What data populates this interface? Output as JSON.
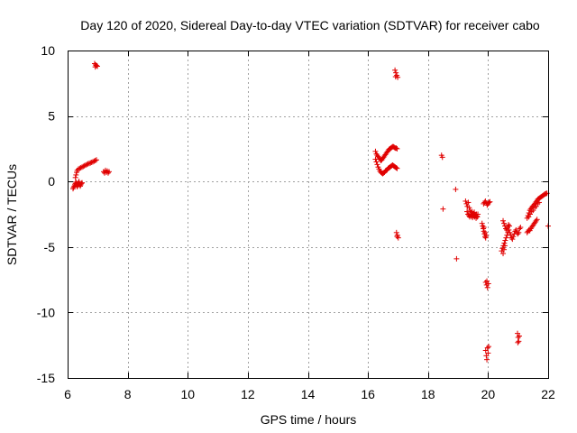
{
  "chart_data": {
    "type": "scatter",
    "title": "Day 120 of 2020, Sidereal Day-to-day VTEC variation (SDTVAR) for receiver cabo",
    "xlabel": "GPS time / hours",
    "ylabel": "SDTVAR / TECUs",
    "xlim": [
      6,
      22
    ],
    "ylim": [
      -15,
      10
    ],
    "x_ticks": [
      6,
      8,
      10,
      12,
      14,
      16,
      18,
      20,
      22
    ],
    "x_tick_labels": [
      "6",
      "8",
      "10",
      "12",
      "14",
      "16",
      "18",
      "20",
      "22"
    ],
    "y_ticks": [
      10,
      5,
      0,
      -5,
      -10,
      -15
    ],
    "y_tick_labels": [
      "10",
      "5",
      "0",
      "-5",
      "-10",
      "-15"
    ],
    "grid": true,
    "marker": "+",
    "color": "#e00000",
    "series": [
      {
        "name": "SDTVAR",
        "points": [
          [
            6.18,
            -0.55
          ],
          [
            6.2,
            -0.45
          ],
          [
            6.22,
            -0.35
          ],
          [
            6.24,
            -0.25
          ],
          [
            6.26,
            -0.15
          ],
          [
            6.28,
            -0.05
          ],
          [
            6.3,
            -0.2
          ],
          [
            6.32,
            -0.4
          ],
          [
            6.34,
            -0.3
          ],
          [
            6.36,
            -0.1
          ],
          [
            6.38,
            0.0
          ],
          [
            6.4,
            -0.2
          ],
          [
            6.42,
            -0.35
          ],
          [
            6.44,
            -0.25
          ],
          [
            6.46,
            -0.15
          ],
          [
            6.48,
            -0.1
          ],
          [
            6.26,
            0.3
          ],
          [
            6.28,
            0.5
          ],
          [
            6.3,
            0.7
          ],
          [
            6.32,
            0.85
          ],
          [
            6.36,
            0.95
          ],
          [
            6.4,
            1.0
          ],
          [
            6.44,
            1.05
          ],
          [
            6.48,
            1.1
          ],
          [
            6.52,
            1.15
          ],
          [
            6.56,
            1.2
          ],
          [
            6.6,
            1.25
          ],
          [
            6.64,
            1.3
          ],
          [
            6.68,
            1.35
          ],
          [
            6.72,
            1.38
          ],
          [
            6.76,
            1.42
          ],
          [
            6.8,
            1.46
          ],
          [
            6.84,
            1.5
          ],
          [
            6.88,
            1.55
          ],
          [
            6.92,
            1.6
          ],
          [
            6.96,
            1.65
          ],
          [
            6.9,
            9.0
          ],
          [
            6.93,
            8.9
          ],
          [
            6.96,
            8.85
          ],
          [
            6.99,
            8.8
          ],
          [
            6.92,
            8.75
          ],
          [
            7.2,
            0.75
          ],
          [
            7.23,
            0.65
          ],
          [
            7.26,
            0.85
          ],
          [
            7.29,
            0.7
          ],
          [
            7.32,
            0.8
          ],
          [
            7.35,
            0.65
          ],
          [
            7.38,
            0.75
          ],
          [
            16.25,
            2.3
          ],
          [
            16.28,
            2.1
          ],
          [
            16.31,
            2.0
          ],
          [
            16.34,
            1.9
          ],
          [
            16.37,
            1.8
          ],
          [
            16.4,
            1.7
          ],
          [
            16.43,
            1.6
          ],
          [
            16.46,
            1.65
          ],
          [
            16.49,
            1.75
          ],
          [
            16.52,
            1.85
          ],
          [
            16.55,
            1.95
          ],
          [
            16.58,
            2.05
          ],
          [
            16.61,
            2.15
          ],
          [
            16.64,
            2.25
          ],
          [
            16.67,
            2.35
          ],
          [
            16.7,
            2.45
          ],
          [
            16.73,
            2.5
          ],
          [
            16.76,
            2.55
          ],
          [
            16.79,
            2.6
          ],
          [
            16.82,
            2.65
          ],
          [
            16.85,
            2.65
          ],
          [
            16.88,
            2.6
          ],
          [
            16.91,
            2.55
          ],
          [
            16.94,
            2.55
          ],
          [
            16.97,
            2.5
          ],
          [
            16.25,
            1.7
          ],
          [
            16.28,
            1.5
          ],
          [
            16.31,
            1.3
          ],
          [
            16.34,
            1.1
          ],
          [
            16.37,
            0.95
          ],
          [
            16.4,
            0.8
          ],
          [
            16.43,
            0.7
          ],
          [
            16.46,
            0.65
          ],
          [
            16.49,
            0.6
          ],
          [
            16.52,
            0.65
          ],
          [
            16.55,
            0.7
          ],
          [
            16.58,
            0.8
          ],
          [
            16.61,
            0.85
          ],
          [
            16.64,
            0.9
          ],
          [
            16.67,
            1.0
          ],
          [
            16.7,
            1.05
          ],
          [
            16.73,
            1.1
          ],
          [
            16.76,
            1.15
          ],
          [
            16.79,
            1.2
          ],
          [
            16.82,
            1.25
          ],
          [
            16.85,
            1.2
          ],
          [
            16.88,
            1.15
          ],
          [
            16.91,
            1.1
          ],
          [
            16.94,
            1.05
          ],
          [
            16.97,
            1.0
          ],
          [
            16.9,
            8.5
          ],
          [
            16.93,
            8.3
          ],
          [
            16.96,
            8.1
          ],
          [
            16.99,
            7.95
          ],
          [
            16.92,
            8.0
          ],
          [
            16.95,
            -3.9
          ],
          [
            16.98,
            -4.1
          ],
          [
            17.01,
            -4.3
          ],
          [
            16.97,
            -4.2
          ],
          [
            18.45,
            2.0
          ],
          [
            18.48,
            1.85
          ],
          [
            18.5,
            -2.1
          ],
          [
            18.92,
            -0.6
          ],
          [
            18.95,
            -5.9
          ],
          [
            19.25,
            -1.5
          ],
          [
            19.28,
            -1.7
          ],
          [
            19.31,
            -1.9
          ],
          [
            19.34,
            -1.6
          ],
          [
            19.37,
            -2.0
          ],
          [
            19.4,
            -2.2
          ],
          [
            19.43,
            -2.4
          ],
          [
            19.46,
            -2.3
          ],
          [
            19.49,
            -2.5
          ],
          [
            19.52,
            -2.6
          ],
          [
            19.55,
            -2.7
          ],
          [
            19.58,
            -2.6
          ],
          [
            19.61,
            -2.5
          ],
          [
            19.64,
            -2.7
          ],
          [
            19.3,
            -2.3
          ],
          [
            19.33,
            -2.5
          ],
          [
            19.36,
            -2.6
          ],
          [
            19.39,
            -2.7
          ],
          [
            19.42,
            -2.55
          ],
          [
            19.45,
            -2.65
          ],
          [
            19.48,
            -2.75
          ],
          [
            19.51,
            -2.45
          ],
          [
            19.54,
            -2.35
          ],
          [
            19.57,
            -2.55
          ],
          [
            19.6,
            -2.8
          ],
          [
            19.63,
            -2.65
          ],
          [
            19.66,
            -2.5
          ],
          [
            19.8,
            -3.2
          ],
          [
            19.82,
            -3.4
          ],
          [
            19.84,
            -3.6
          ],
          [
            19.86,
            -3.8
          ],
          [
            19.88,
            -4.0
          ],
          [
            19.9,
            -4.2
          ],
          [
            19.92,
            -4.3
          ],
          [
            19.94,
            -4.1
          ],
          [
            19.86,
            -3.5
          ],
          [
            19.9,
            -3.9
          ],
          [
            19.85,
            -1.7
          ],
          [
            19.88,
            -1.6
          ],
          [
            19.91,
            -1.5
          ],
          [
            19.94,
            -1.65
          ],
          [
            19.97,
            -1.8
          ],
          [
            20.0,
            -1.7
          ],
          [
            20.03,
            -1.6
          ],
          [
            20.06,
            -1.55
          ],
          [
            19.92,
            -7.7
          ],
          [
            19.95,
            -7.9
          ],
          [
            19.98,
            -8.1
          ],
          [
            20.01,
            -7.8
          ],
          [
            19.96,
            -7.6
          ],
          [
            19.92,
            -12.9
          ],
          [
            19.94,
            -13.3
          ],
          [
            19.96,
            -13.6
          ],
          [
            19.98,
            -12.7
          ],
          [
            20.0,
            -13.1
          ],
          [
            20.02,
            -12.6
          ],
          [
            20.45,
            -5.3
          ],
          [
            20.48,
            -5.1
          ],
          [
            20.51,
            -4.9
          ],
          [
            20.54,
            -4.7
          ],
          [
            20.57,
            -4.5
          ],
          [
            20.6,
            -4.3
          ],
          [
            20.63,
            -4.1
          ],
          [
            20.66,
            -3.9
          ],
          [
            20.69,
            -3.7
          ],
          [
            20.72,
            -3.9
          ],
          [
            20.75,
            -4.1
          ],
          [
            20.78,
            -4.3
          ],
          [
            20.81,
            -4.4
          ],
          [
            20.84,
            -4.2
          ],
          [
            20.87,
            -4.0
          ],
          [
            20.9,
            -3.8
          ],
          [
            20.93,
            -3.7
          ],
          [
            20.96,
            -3.9
          ],
          [
            20.99,
            -4.0
          ],
          [
            21.02,
            -3.9
          ],
          [
            21.05,
            -3.6
          ],
          [
            21.08,
            -3.5
          ],
          [
            20.5,
            -5.5
          ],
          [
            20.53,
            -5.2
          ],
          [
            20.56,
            -4.9
          ],
          [
            20.5,
            -3.0
          ],
          [
            20.53,
            -3.2
          ],
          [
            20.56,
            -3.4
          ],
          [
            20.59,
            -3.6
          ],
          [
            20.62,
            -3.7
          ],
          [
            20.65,
            -3.5
          ],
          [
            20.68,
            -3.3
          ],
          [
            20.71,
            -3.4
          ],
          [
            20.98,
            -11.6
          ],
          [
            21.0,
            -11.9
          ],
          [
            21.02,
            -12.2
          ],
          [
            21.04,
            -11.8
          ],
          [
            20.99,
            -12.3
          ],
          [
            21.3,
            -3.9
          ],
          [
            21.33,
            -3.8
          ],
          [
            21.36,
            -3.7
          ],
          [
            21.39,
            -3.75
          ],
          [
            21.42,
            -3.6
          ],
          [
            21.45,
            -3.5
          ],
          [
            21.48,
            -3.4
          ],
          [
            21.51,
            -3.3
          ],
          [
            21.54,
            -3.2
          ],
          [
            21.57,
            -3.1
          ],
          [
            21.6,
            -3.0
          ],
          [
            21.63,
            -2.9
          ],
          [
            21.3,
            -2.8
          ],
          [
            21.33,
            -2.6
          ],
          [
            21.36,
            -2.4
          ],
          [
            21.39,
            -2.2
          ],
          [
            21.42,
            -2.1
          ],
          [
            21.45,
            -2.0
          ],
          [
            21.48,
            -1.9
          ],
          [
            21.51,
            -1.85
          ],
          [
            21.54,
            -1.75
          ],
          [
            21.57,
            -1.65
          ],
          [
            21.6,
            -1.55
          ],
          [
            21.63,
            -1.45
          ],
          [
            21.66,
            -1.35
          ],
          [
            21.69,
            -1.3
          ],
          [
            21.72,
            -1.25
          ],
          [
            21.75,
            -1.2
          ],
          [
            21.78,
            -1.15
          ],
          [
            21.81,
            -1.1
          ],
          [
            21.84,
            -1.05
          ],
          [
            21.87,
            -1.0
          ],
          [
            21.9,
            -0.95
          ],
          [
            21.93,
            -0.92
          ],
          [
            21.96,
            -0.9
          ],
          [
            21.35,
            -2.7
          ],
          [
            21.4,
            -2.5
          ],
          [
            21.45,
            -2.3
          ],
          [
            21.5,
            -2.2
          ],
          [
            21.55,
            -2.0
          ],
          [
            21.6,
            -1.9
          ],
          [
            21.65,
            -1.7
          ],
          [
            21.7,
            -1.6
          ],
          [
            22.0,
            -3.4
          ]
        ]
      }
    ]
  }
}
